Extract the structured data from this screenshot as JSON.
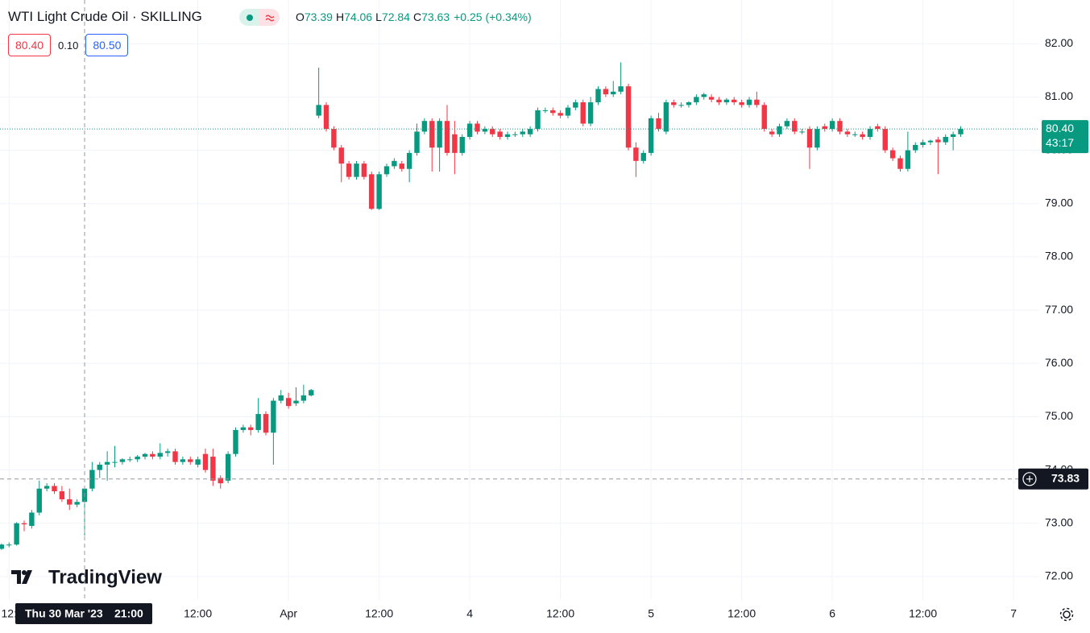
{
  "chart_data": {
    "type": "candlestick",
    "legend": {
      "title": "WTI Light Crude Oil · SKILLING",
      "ohlc": [
        {
          "label": "O",
          "value": "73.39"
        },
        {
          "label": "H",
          "value": "74.06"
        },
        {
          "label": "L",
          "value": "72.84"
        },
        {
          "label": "C",
          "value": "73.63"
        }
      ],
      "change": "+0.25 (+0.34%)"
    },
    "trade": {
      "sell": "80.40",
      "spread": "0.10",
      "buy": "80.50"
    },
    "watermark": "TradingView",
    "up_color": "#089981",
    "down_color": "#f23645",
    "grid": true,
    "xlim": [
      -0.2,
      137.4
    ],
    "xticks": [
      {
        "value": 1,
        "label": "12:"
      },
      {
        "value": 26,
        "label": "12:00"
      },
      {
        "value": 38,
        "label": "Apr"
      },
      {
        "value": 50,
        "label": "12:00"
      },
      {
        "value": 62,
        "label": "4"
      },
      {
        "value": 74,
        "label": "12:00"
      },
      {
        "value": 86,
        "label": "5"
      },
      {
        "value": 98,
        "label": "12:00"
      },
      {
        "value": 110,
        "label": "6"
      },
      {
        "value": 122,
        "label": "12:00"
      },
      {
        "value": 134,
        "label": "7"
      }
    ],
    "ylim": [
      71.56,
      82.82
    ],
    "yticks": [
      {
        "value": 72,
        "label": "72.00"
      },
      {
        "value": 73,
        "label": "73.00"
      },
      {
        "value": 74,
        "label": "74.00"
      },
      {
        "value": 75,
        "label": "75.00"
      },
      {
        "value": 76,
        "label": "76.00"
      },
      {
        "value": 77,
        "label": "77.00"
      },
      {
        "value": 78,
        "label": "78.00"
      },
      {
        "value": 79,
        "label": "79.00"
      },
      {
        "value": 80,
        "label": "80.00"
      },
      {
        "value": 81,
        "label": "81.00"
      },
      {
        "value": 82,
        "label": "82.00"
      }
    ],
    "last_price": {
      "value": 80.4,
      "label": "80.40",
      "countdown": "43:17"
    },
    "crosshair": {
      "x": 11,
      "y": 73.83,
      "date": "Thu 30 Mar '23",
      "time": "21:00"
    },
    "open": [
      72.52,
      72.6,
      72.6,
      73.0,
      72.95,
      73.2,
      73.65,
      73.7,
      73.6,
      73.45,
      73.35,
      73.4,
      73.65,
      74.0,
      74.1,
      74.15,
      74.15,
      74.2,
      74.2,
      74.25,
      74.3,
      74.25,
      74.32,
      74.35,
      74.15,
      74.2,
      74.1,
      74.3,
      74.25,
      73.85,
      73.8,
      74.3,
      74.75,
      74.8,
      74.75,
      75.05,
      74.7,
      75.3,
      75.35,
      75.25,
      75.3,
      75.4,
      80.65,
      80.85,
      80.4,
      80.05,
      79.75,
      79.5,
      79.75,
      79.55,
      78.9,
      79.55,
      79.7,
      79.75,
      79.65,
      79.95,
      80.35,
      80.55,
      80.05,
      80.55,
      80.3,
      79.95,
      80.25,
      80.5,
      80.35,
      80.4,
      80.35,
      80.25,
      80.3,
      80.3,
      80.3,
      80.4,
      80.75,
      80.75,
      80.7,
      80.65,
      80.8,
      80.9,
      80.5,
      80.9,
      81.15,
      81.05,
      81.1,
      81.2,
      80.05,
      79.8,
      79.95,
      80.6,
      80.35,
      80.9,
      80.85,
      80.85,
      80.9,
      81.0,
      81.0,
      80.95,
      80.9,
      80.95,
      80.9,
      80.85,
      80.95,
      80.85,
      80.35,
      80.3,
      80.45,
      80.55,
      80.35,
      80.4,
      80.05,
      80.45,
      80.4,
      80.55,
      80.35,
      80.3,
      80.3,
      80.25,
      80.45,
      80.4,
      80.0,
      79.85,
      79.65,
      80.0,
      80.1,
      80.15,
      80.2,
      80.15,
      80.25,
      80.3
    ],
    "high": [
      72.62,
      72.64,
      73.02,
      73.05,
      73.25,
      73.8,
      73.75,
      73.75,
      73.7,
      73.65,
      73.45,
      73.7,
      74.15,
      74.15,
      74.35,
      74.45,
      74.22,
      74.25,
      74.28,
      74.32,
      74.35,
      74.5,
      74.4,
      74.4,
      74.25,
      74.25,
      74.25,
      74.4,
      74.4,
      73.9,
      74.35,
      74.8,
      74.85,
      74.85,
      75.35,
      75.1,
      75.35,
      75.5,
      75.45,
      75.55,
      75.6,
      75.52,
      81.55,
      80.9,
      80.45,
      80.1,
      79.8,
      79.8,
      79.8,
      79.6,
      79.6,
      79.75,
      79.85,
      79.8,
      80.0,
      80.5,
      80.6,
      80.6,
      80.6,
      80.85,
      80.55,
      80.3,
      80.55,
      80.55,
      80.45,
      80.45,
      80.4,
      80.35,
      80.35,
      80.4,
      80.45,
      80.8,
      80.8,
      80.8,
      80.75,
      80.85,
      80.95,
      80.95,
      81.0,
      81.2,
      81.2,
      81.3,
      81.65,
      81.25,
      80.15,
      80.0,
      80.65,
      80.7,
      80.95,
      80.95,
      80.9,
      80.92,
      81.05,
      81.08,
      81.05,
      81.0,
      80.98,
      81.0,
      80.95,
      81.0,
      81.1,
      80.9,
      80.4,
      80.5,
      80.6,
      80.6,
      80.4,
      80.45,
      80.45,
      80.5,
      80.6,
      80.6,
      80.4,
      80.35,
      80.35,
      80.45,
      80.5,
      80.45,
      80.05,
      79.9,
      80.35,
      80.15,
      80.2,
      80.2,
      80.25,
      80.3,
      80.35,
      80.45
    ],
    "low": [
      72.5,
      72.55,
      72.58,
      72.85,
      72.9,
      73.15,
      73.6,
      73.55,
      73.4,
      73.25,
      73.3,
      72.77,
      73.6,
      73.85,
      73.8,
      74.05,
      74.1,
      74.15,
      74.15,
      74.2,
      74.2,
      74.2,
      74.25,
      74.1,
      74.1,
      74.1,
      74.05,
      73.95,
      73.7,
      73.65,
      73.75,
      74.25,
      74.7,
      74.65,
      74.7,
      74.65,
      74.1,
      75.25,
      75.15,
      75.2,
      75.25,
      75.38,
      80.6,
      80.35,
      80.0,
      79.4,
      79.45,
      79.45,
      79.45,
      78.88,
      78.88,
      79.5,
      79.65,
      79.6,
      79.4,
      79.9,
      80.3,
      79.6,
      79.6,
      79.9,
      79.55,
      79.9,
      80.2,
      80.3,
      80.3,
      80.25,
      80.2,
      80.2,
      80.25,
      80.25,
      80.25,
      80.35,
      80.7,
      80.65,
      80.6,
      80.6,
      80.75,
      80.45,
      80.45,
      80.85,
      81.0,
      81.0,
      81.05,
      80.0,
      79.5,
      79.75,
      79.9,
      80.35,
      80.3,
      80.8,
      80.8,
      80.8,
      80.85,
      80.95,
      80.9,
      80.85,
      80.85,
      80.85,
      80.8,
      80.8,
      80.8,
      80.35,
      80.25,
      80.25,
      80.4,
      80.3,
      80.3,
      79.65,
      80.0,
      80.35,
      80.35,
      80.3,
      80.25,
      80.25,
      80.2,
      80.2,
      80.35,
      79.95,
      79.8,
      79.6,
      79.6,
      79.95,
      80.05,
      80.1,
      79.55,
      80.1,
      80.0,
      80.25
    ],
    "close": [
      72.6,
      72.6,
      73.0,
      72.98,
      73.2,
      73.65,
      73.7,
      73.6,
      73.45,
      73.35,
      73.4,
      73.65,
      74.0,
      74.1,
      74.15,
      74.15,
      74.2,
      74.2,
      74.25,
      74.3,
      74.25,
      74.32,
      74.35,
      74.15,
      74.2,
      74.15,
      74.2,
      74.0,
      73.8,
      73.75,
      74.3,
      74.75,
      74.8,
      74.75,
      75.05,
      74.7,
      75.3,
      75.4,
      75.2,
      75.3,
      75.4,
      75.5,
      80.85,
      80.4,
      80.05,
      79.75,
      79.5,
      79.75,
      79.5,
      78.9,
      79.55,
      79.7,
      79.8,
      79.65,
      79.95,
      80.35,
      80.55,
      80.05,
      80.55,
      79.95,
      79.95,
      80.25,
      80.5,
      80.35,
      80.4,
      80.3,
      80.25,
      80.3,
      80.3,
      80.35,
      80.4,
      80.75,
      80.75,
      80.7,
      80.65,
      80.8,
      80.9,
      80.5,
      80.9,
      81.15,
      81.05,
      81.1,
      81.2,
      80.05,
      79.8,
      79.95,
      80.6,
      80.4,
      80.9,
      80.85,
      80.85,
      80.9,
      81.0,
      81.05,
      80.95,
      80.9,
      80.95,
      80.9,
      80.85,
      80.95,
      80.85,
      80.4,
      80.3,
      80.45,
      80.55,
      80.35,
      80.35,
      80.05,
      80.4,
      80.4,
      80.55,
      80.35,
      80.3,
      80.3,
      80.25,
      80.4,
      80.4,
      80.0,
      79.85,
      79.65,
      80.0,
      80.1,
      80.15,
      80.18,
      80.15,
      80.25,
      80.3,
      80.4
    ]
  }
}
